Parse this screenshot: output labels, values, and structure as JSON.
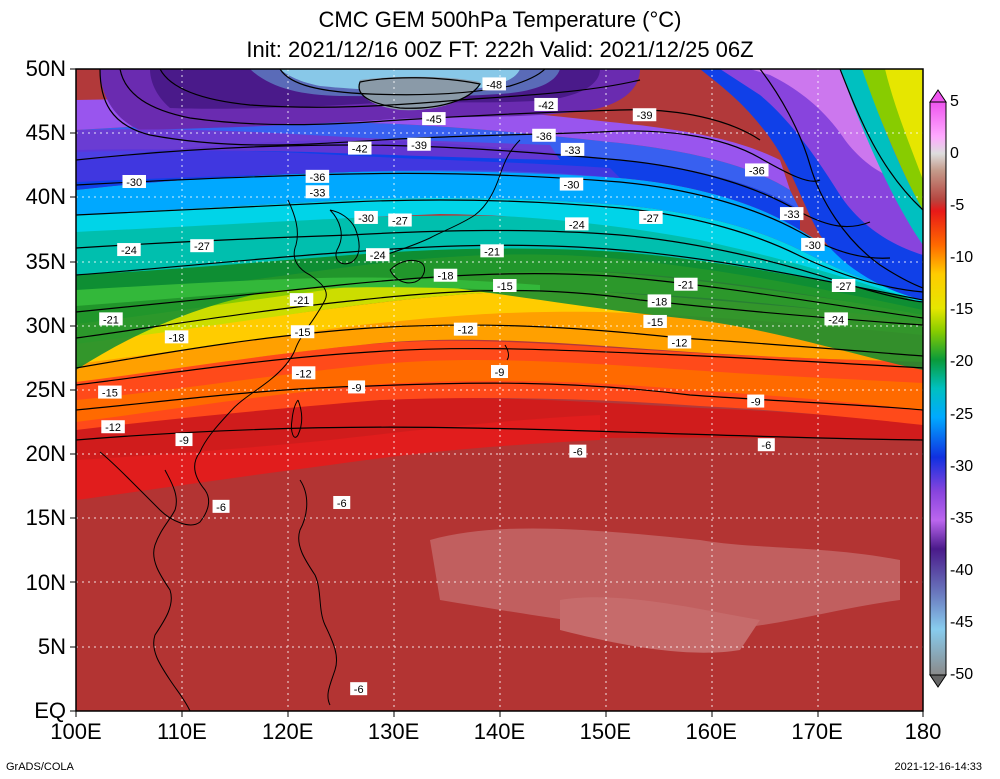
{
  "title_line1": "CMC GEM 500hPa Temperature (°C)",
  "title_line2": "Init: 2021/12/16 00Z  FT: 222h  Valid: 2021/12/25 06Z",
  "lat_labels": [
    "50N",
    "45N",
    "40N",
    "35N",
    "30N",
    "25N",
    "20N",
    "15N",
    "10N",
    "5N",
    "EQ"
  ],
  "lon_labels": [
    "100E",
    "110E",
    "120E",
    "130E",
    "140E",
    "150E",
    "160E",
    "170E",
    "180"
  ],
  "colorbar": {
    "ticks": [
      "5",
      "0",
      "-5",
      "-10",
      "-15",
      "-20",
      "-25",
      "-30",
      "-35",
      "-40",
      "-45",
      "-50"
    ],
    "min": -50,
    "max": 5
  },
  "footer_left": "GrADS/COLA",
  "footer_right": "2021-12-16-14:33",
  "contour_labels": [
    {
      "v": "-48",
      "lon": 139.5,
      "lat": 48.8
    },
    {
      "v": "-45",
      "lon": 133.8,
      "lat": 46.1
    },
    {
      "v": "-42",
      "lon": 144.4,
      "lat": 47.2
    },
    {
      "v": "-42",
      "lon": 126.8,
      "lat": 43.8
    },
    {
      "v": "-39",
      "lon": 132.4,
      "lat": 44.1
    },
    {
      "v": "-39",
      "lon": 153.7,
      "lat": 46.4
    },
    {
      "v": "-36",
      "lon": 144.2,
      "lat": 44.8
    },
    {
      "v": "-33",
      "lon": 146.9,
      "lat": 43.7
    },
    {
      "v": "-36",
      "lon": 164.3,
      "lat": 42.1
    },
    {
      "v": "-36",
      "lon": 122.8,
      "lat": 41.6
    },
    {
      "v": "-33",
      "lon": 122.8,
      "lat": 40.4
    },
    {
      "v": "-30",
      "lon": 105.5,
      "lat": 41.2
    },
    {
      "v": "-30",
      "lon": 146.8,
      "lat": 41.0
    },
    {
      "v": "-30",
      "lon": 127.4,
      "lat": 38.4
    },
    {
      "v": "-27",
      "lon": 130.6,
      "lat": 38.2
    },
    {
      "v": "-24",
      "lon": 147.3,
      "lat": 37.9
    },
    {
      "v": "-27",
      "lon": 154.3,
      "lat": 38.4
    },
    {
      "v": "-33",
      "lon": 167.6,
      "lat": 38.7
    },
    {
      "v": "-30",
      "lon": 169.6,
      "lat": 36.3
    },
    {
      "v": "-24",
      "lon": 105.0,
      "lat": 35.9
    },
    {
      "v": "-27",
      "lon": 111.9,
      "lat": 36.2
    },
    {
      "v": "-24",
      "lon": 128.5,
      "lat": 35.5
    },
    {
      "v": "-21",
      "lon": 139.3,
      "lat": 35.8
    },
    {
      "v": "-18",
      "lon": 134.9,
      "lat": 33.9
    },
    {
      "v": "-15",
      "lon": 140.5,
      "lat": 33.1
    },
    {
      "v": "-21",
      "lon": 157.6,
      "lat": 33.2
    },
    {
      "v": "-27",
      "lon": 172.5,
      "lat": 33.1
    },
    {
      "v": "-21",
      "lon": 121.3,
      "lat": 32.0
    },
    {
      "v": "-18",
      "lon": 155.1,
      "lat": 31.9
    },
    {
      "v": "-15",
      "lon": 154.7,
      "lat": 30.3
    },
    {
      "v": "-24",
      "lon": 171.8,
      "lat": 30.5
    },
    {
      "v": "-21",
      "lon": 103.3,
      "lat": 30.5
    },
    {
      "v": "-18",
      "lon": 109.5,
      "lat": 29.1
    },
    {
      "v": "-15",
      "lon": 121.4,
      "lat": 29.5
    },
    {
      "v": "-12",
      "lon": 136.8,
      "lat": 29.7
    },
    {
      "v": "-12",
      "lon": 157.0,
      "lat": 28.7
    },
    {
      "v": "-12",
      "lon": 121.5,
      "lat": 26.3
    },
    {
      "v": "-9",
      "lon": 140.0,
      "lat": 26.4
    },
    {
      "v": "-9",
      "lon": 126.5,
      "lat": 25.2
    },
    {
      "v": "-15",
      "lon": 103.2,
      "lat": 24.8
    },
    {
      "v": "-9",
      "lon": 164.2,
      "lat": 24.1
    },
    {
      "v": "-12",
      "lon": 103.5,
      "lat": 22.1
    },
    {
      "v": "-9",
      "lon": 110.2,
      "lat": 21.1
    },
    {
      "v": "-6",
      "lon": 147.4,
      "lat": 20.2
    },
    {
      "v": "-6",
      "lon": 165.2,
      "lat": 20.7
    },
    {
      "v": "-6",
      "lon": 125.1,
      "lat": 16.2
    },
    {
      "v": "-6",
      "lon": 113.7,
      "lat": 15.9
    },
    {
      "v": "-6",
      "lon": 126.7,
      "lat": 1.7
    }
  ]
}
